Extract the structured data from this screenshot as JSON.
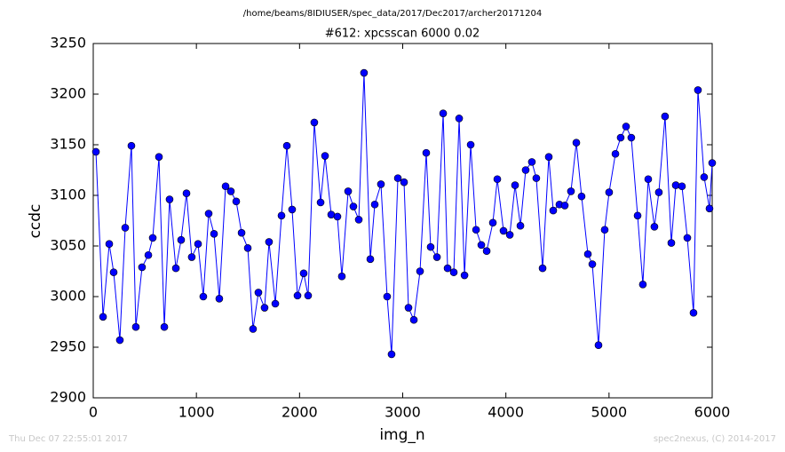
{
  "chart_data": {
    "type": "line",
    "header": "/home/beams/8IDIUSER/spec_data/2017/Dec2017/archer20171204",
    "title": "#612: xpcsscan 6000 0.02",
    "xlabel": "img_n",
    "ylabel": "ccdc",
    "footer_left": "Thu Dec 07 22:55:01 2017",
    "footer_right": "spec2nexus, (C) 2014-2017",
    "xlim": [
      0,
      6000
    ],
    "xticks": [
      0,
      1000,
      2000,
      3000,
      4000,
      5000,
      6000
    ],
    "ylim": [
      2900,
      3250
    ],
    "yticks": [
      2900,
      2950,
      3000,
      3050,
      3100,
      3150,
      3200,
      3250
    ],
    "series": [
      {
        "color": "#0000ff",
        "x": [
          26,
          95,
          155,
          198,
          258,
          310,
          370,
          413,
          473,
          534,
          577,
          637,
          689,
          740,
          801,
          852,
          904,
          955,
          1016,
          1067,
          1119,
          1171,
          1222,
          1283,
          1334,
          1386,
          1438,
          1498,
          1549,
          1601,
          1661,
          1704,
          1765,
          1825,
          1877,
          1928,
          1980,
          2040,
          2083,
          2143,
          2204,
          2247,
          2307,
          2367,
          2410,
          2471,
          2522,
          2574,
          2625,
          2686,
          2729,
          2789,
          2849,
          2892,
          2953,
          3013,
          3056,
          3108,
          3168,
          3228,
          3271,
          3332,
          3392,
          3435,
          3495,
          3547,
          3599,
          3659,
          3711,
          3762,
          3814,
          3874,
          3917,
          3977,
          4038,
          4089,
          4141,
          4192,
          4252,
          4295,
          4356,
          4416,
          4459,
          4519,
          4571,
          4631,
          4683,
          4734,
          4795,
          4838,
          4898,
          4958,
          5001,
          5062,
          5113,
          5165,
          5216,
          5277,
          5328,
          5380,
          5440,
          5483,
          5543,
          5604,
          5647,
          5707,
          5759,
          5819,
          5862,
          5922,
          5974,
          6000
        ],
        "values": [
          3143,
          2980,
          3052,
          3024,
          2957,
          3068,
          3149,
          2970,
          3029,
          3041,
          3058,
          3138,
          2970,
          3096,
          3028,
          3056,
          3102,
          3039,
          3052,
          3000,
          3082,
          3062,
          2998,
          3109,
          3104,
          3094,
          3063,
          3048,
          2968,
          3004,
          2989,
          3054,
          2993,
          3080,
          3149,
          3086,
          3001,
          3023,
          3001,
          3172,
          3093,
          3139,
          3081,
          3079,
          3020,
          3104,
          3089,
          3076,
          3221,
          3037,
          3091,
          3111,
          3000,
          2943,
          3117,
          3113,
          2989,
          2977,
          3025,
          3142,
          3049,
          3039,
          3181,
          3028,
          3024,
          3176,
          3021,
          3150,
          3066,
          3051,
          3045,
          3073,
          3116,
          3065,
          3061,
          3110,
          3070,
          3125,
          3133,
          3117,
          3028,
          3138,
          3085,
          3091,
          3090,
          3104,
          3152,
          3099,
          3042,
          3032,
          2952,
          3066,
          3103,
          3141,
          3157,
          3168,
          3157,
          3080,
          3012,
          3116,
          3069,
          3103,
          3178,
          3053,
          3110,
          3109,
          3058,
          2984,
          3204,
          3118,
          3087,
          3132
        ]
      }
    ]
  }
}
